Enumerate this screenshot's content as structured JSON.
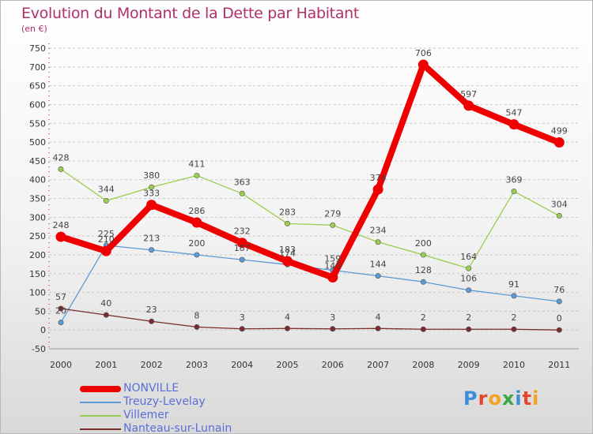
{
  "chart_data": {
    "type": "line",
    "title": "Evolution du Montant de la Dette par Habitant",
    "subtitle": "(en €)",
    "x": [
      "2000",
      "2001",
      "2002",
      "2003",
      "2004",
      "2005",
      "2006",
      "2007",
      "2008",
      "2009",
      "2010",
      "2011"
    ],
    "ylim": [
      -50,
      750
    ],
    "yticks": [
      -50,
      0,
      50,
      100,
      150,
      200,
      250,
      300,
      350,
      400,
      450,
      500,
      550,
      600,
      650,
      700,
      750
    ],
    "grid": "horizontal dashed",
    "legend_position": "bottom-left",
    "series": [
      {
        "name": "NONVILLE",
        "color": "#ee0000",
        "values": [
          248,
          210,
          333,
          286,
          232,
          183,
          140,
          374,
          706,
          597,
          547,
          499
        ]
      },
      {
        "name": "Treuzy-Levelay",
        "color": "#5b9bd5",
        "values": [
          20,
          225,
          213,
          200,
          187,
          174,
          159,
          144,
          128,
          106,
          91,
          76
        ]
      },
      {
        "name": "Villemer",
        "color": "#9acd50",
        "values": [
          428,
          344,
          380,
          411,
          363,
          283,
          279,
          234,
          200,
          164,
          369,
          304
        ]
      },
      {
        "name": "Nanteau-sur-Lunain",
        "color": "#7a2b2b",
        "values": [
          57,
          40,
          23,
          8,
          3,
          4,
          3,
          4,
          2,
          2,
          2,
          0
        ]
      }
    ]
  },
  "brand": {
    "name": "Proxiti",
    "letters": [
      "P",
      "r",
      "o",
      "x",
      "i",
      "t",
      "i"
    ],
    "colors": [
      "#3b8fd8",
      "#e8452c",
      "#f4a31b",
      "#3aa845",
      "#3b8fd8",
      "#e8452c",
      "#f4a31b"
    ]
  }
}
